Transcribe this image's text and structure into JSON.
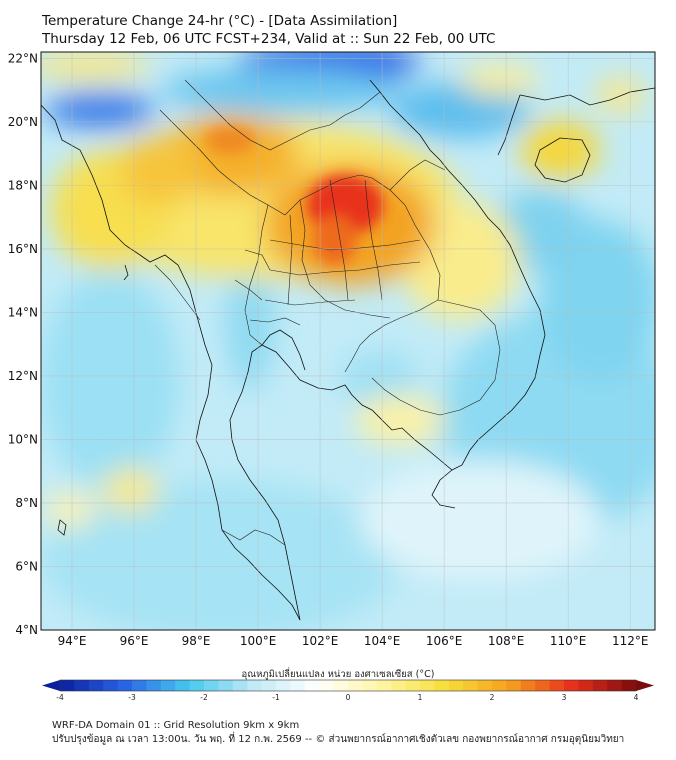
{
  "title": {
    "line1": "Temperature Change 24-hr (°C) - [Data Assimilation]",
    "line2": "Thursday 12 Feb, 06 UTC FCST+234, Valid at :: Sun 22 Feb, 00 UTC"
  },
  "map": {
    "lat_ticks": [
      "22°N",
      "20°N",
      "18°N",
      "16°N",
      "14°N",
      "12°N",
      "10°N",
      "8°N",
      "6°N",
      "4°N"
    ],
    "lon_ticks": [
      "94°E",
      "96°E",
      "98°E",
      "100°E",
      "102°E",
      "104°E",
      "106°E",
      "108°E",
      "110°E",
      "112°E"
    ],
    "lat_range": [
      4,
      22.2
    ],
    "lon_range": [
      93,
      112.8
    ],
    "grid": true
  },
  "colorbar": {
    "title": "อุณหภูมิเปลี่ยนแปลง หน่วย องศาเซลเซียส (°C)",
    "ticks": [
      "-4",
      "-3",
      "-2",
      "-1",
      "0",
      "1",
      "2",
      "3",
      "4"
    ],
    "range": [
      -4,
      4
    ],
    "colors": {
      "dark_blue": "#0a1f9e",
      "blue": "#2a63e6",
      "cyan": "#45c8ee",
      "light_cyan": "#bde9f6",
      "white": "#ffffff",
      "light_yellow": "#fff6a8",
      "yellow": "#f7df3a",
      "orange": "#f5a21e",
      "red": "#e8301c",
      "dark_red": "#7d0b0b"
    }
  },
  "footer": {
    "line1": "WRF-DA Domain 01 :: Grid Resolution 9km x 9km",
    "line2": "ปรับปรุงข้อมูล ณ เวลา 13:00น. วัน พฤ. ที่ 12 ก.พ. 2569 -- © ส่วนพยากรณ์อากาศเชิงตัวเลข กองพยากรณ์อากาศ กรมอุตุนิยมวิทยา"
  }
}
